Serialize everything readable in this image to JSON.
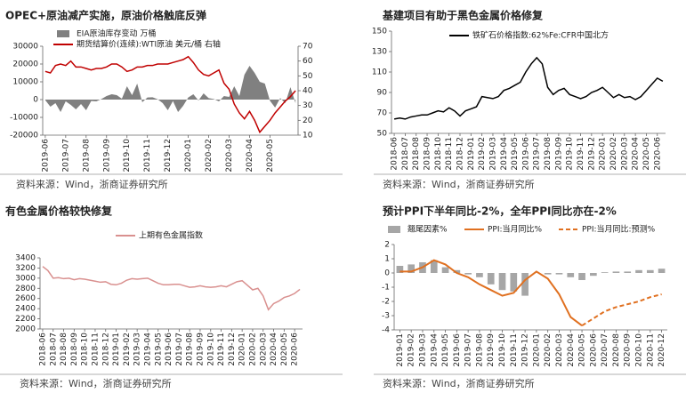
{
  "chart_data": [
    {
      "type": "line",
      "title": "OPEC+原油减产实施，原油价格触底反弹",
      "source": "资料来源：Wind，浙商证券研究所",
      "categories": [
        "2019-06",
        null,
        null,
        null,
        "2019-07",
        null,
        null,
        null,
        "2019-08",
        null,
        null,
        null,
        "2019-09",
        null,
        null,
        null,
        "2019-10",
        null,
        null,
        null,
        "2019-11",
        null,
        null,
        null,
        "2019-12",
        null,
        null,
        null,
        "2020-01",
        null,
        null,
        null,
        "2020-02",
        null,
        null,
        null,
        "2020-03",
        null,
        null,
        null,
        "2020-04",
        null,
        null,
        null,
        "2020-05",
        null,
        null,
        null,
        null,
        null
      ],
      "series": [
        {
          "name": "EIA原油库存变动 万桶",
          "kind": "area",
          "color": "#808080",
          "values": [
            -300,
            -4000,
            -2000,
            -7000,
            -1000,
            -3000,
            -5500,
            -2500,
            -6000,
            -800,
            -1000,
            300,
            2000,
            3000,
            2500,
            500,
            7500,
            2500,
            9000,
            -1500,
            1200,
            1300,
            200,
            -2000,
            -6000,
            -800,
            -7000,
            -3500,
            1200,
            3000,
            -500,
            3500,
            800,
            300,
            -1000,
            2000,
            1500,
            7500,
            2000,
            14000,
            19000,
            15000,
            10000,
            9000,
            -700,
            -4500,
            800,
            -2000,
            7000,
            -2000
          ]
        },
        {
          "name": "期货结算价(连续):WTI原油 美元/桶 右轴",
          "kind": "line",
          "axis": "y2",
          "color": "#c00000",
          "values": [
            53,
            52,
            57,
            58,
            57,
            60,
            56,
            56,
            55,
            54,
            55,
            55,
            56,
            58,
            58,
            56,
            53,
            54,
            56,
            56,
            57,
            57,
            58,
            58,
            58,
            59,
            60,
            61,
            63,
            59,
            54,
            51,
            50,
            52,
            54,
            45,
            41,
            31,
            25,
            21,
            26,
            20,
            12,
            16,
            20,
            25,
            29,
            33,
            36,
            40
          ]
        }
      ],
      "ylim": [
        -20000,
        30000
      ],
      "yticks": [
        -20000,
        -10000,
        0,
        10000,
        20000,
        30000
      ],
      "y2lim": [
        10,
        70
      ],
      "y2ticks": [
        10,
        20,
        30,
        40,
        50,
        60,
        70
      ]
    },
    {
      "type": "line",
      "title": "基建项目有助于黑色金属价格修复",
      "source": "资料来源：Wind，浙商证券研究所",
      "categories": [
        "2018-06",
        null,
        "2018-07",
        null,
        "2018-08",
        null,
        "2018-09",
        null,
        "2018-10",
        null,
        "2018-11",
        null,
        "2018-12",
        null,
        "2019-01",
        null,
        "2019-02",
        null,
        "2019-03",
        null,
        "2019-04",
        null,
        "2019-05",
        null,
        "2019-06",
        null,
        "2019-07",
        null,
        "2019-08",
        null,
        "2019-09",
        null,
        "2019-10",
        null,
        "2019-11",
        null,
        "2019-12",
        null,
        "2020-01",
        null,
        "2020-02",
        null,
        "2020-03",
        null,
        "2020-04",
        null,
        "2020-05",
        null,
        "2020-06",
        null
      ],
      "series": [
        {
          "name": "铁矿石价格指数:62%Fe:CFR中国北方",
          "kind": "line",
          "color": "#000000",
          "values": [
            64,
            65,
            64,
            66,
            67,
            68,
            68,
            70,
            72,
            71,
            75,
            72,
            67,
            72,
            74,
            76,
            86,
            85,
            84,
            86,
            92,
            94,
            97,
            100,
            110,
            118,
            124,
            118,
            95,
            88,
            92,
            94,
            88,
            86,
            84,
            86,
            90,
            92,
            95,
            90,
            85,
            88,
            85,
            86,
            83,
            86,
            92,
            98,
            104,
            101
          ]
        }
      ],
      "ylim": [
        50,
        150
      ],
      "yticks": [
        50,
        70,
        90,
        110,
        130,
        150
      ]
    },
    {
      "type": "line",
      "title": "有色金属价格较快修复",
      "source": "资料来源：Wind，浙商证券研究所",
      "categories": [
        "2018-06",
        null,
        "2018-07",
        null,
        "2018-08",
        null,
        "2018-09",
        null,
        "2018-10",
        null,
        "2018-11",
        null,
        "2018-12",
        null,
        "2019-01",
        null,
        "2019-02",
        null,
        "2019-03",
        null,
        "2019-04",
        null,
        "2019-05",
        null,
        "2019-06",
        null,
        "2019-07",
        null,
        "2019-08",
        null,
        "2019-09",
        null,
        "2019-10",
        null,
        "2019-11",
        null,
        "2019-12",
        null,
        "2020-01",
        null,
        "2020-02",
        null,
        "2020-03",
        null,
        "2020-04",
        null,
        "2020-05",
        null,
        "2020-06",
        null
      ],
      "series": [
        {
          "name": "上期有色金属指数",
          "kind": "line",
          "color": "#d9908f",
          "values": [
            3230,
            3150,
            3000,
            3010,
            2990,
            3000,
            2970,
            2990,
            2980,
            2960,
            2940,
            2920,
            2930,
            2880,
            2870,
            2900,
            2960,
            2990,
            2980,
            2990,
            3000,
            2950,
            2900,
            2870,
            2870,
            2880,
            2880,
            2850,
            2820,
            2830,
            2850,
            2830,
            2820,
            2830,
            2850,
            2830,
            2880,
            2930,
            2950,
            2860,
            2770,
            2800,
            2650,
            2380,
            2500,
            2550,
            2620,
            2650,
            2700,
            2780
          ]
        }
      ],
      "ylim": [
        2000,
        3400
      ],
      "yticks": [
        2000,
        2200,
        2400,
        2600,
        2800,
        3000,
        3200,
        3400
      ]
    },
    {
      "type": "line",
      "title": "预计PPI下半年同比-2%，全年PPI同比亦在-2%",
      "source": "资料来源：Wind，浙商证券研究所",
      "categories": [
        "2019-01",
        "2019-02",
        "2019-03",
        "2019-04",
        "2019-05",
        "2019-06",
        "2019-07",
        "2019-08",
        "2019-09",
        "2019-10",
        "2019-11",
        "2019-12",
        "2020-01",
        "2020-02",
        "2020-03",
        "2020-04",
        "2020-05",
        "2020-06",
        "2020-07",
        "2020-08",
        "2020-09",
        "2020-10",
        "2020-11",
        "2020-12"
      ],
      "series": [
        {
          "name": "翘尾因素%",
          "kind": "bar",
          "color": "#a6a6a6",
          "values": [
            0.5,
            0.6,
            0.75,
            0.9,
            0.4,
            0.2,
            -0.1,
            -0.3,
            -0.8,
            -1.2,
            -1.3,
            -1.6,
            0,
            -0.1,
            -0.1,
            -0.3,
            -0.5,
            -0.2,
            0.05,
            0.1,
            0.1,
            0.2,
            0.2,
            0.3
          ]
        },
        {
          "name": "PPI:当月同比%",
          "kind": "line",
          "color": "#e07020",
          "values": [
            0.1,
            0.1,
            0.4,
            0.9,
            0.6,
            0,
            -0.3,
            -0.8,
            -1.2,
            -1.6,
            -1.4,
            -0.5,
            0.1,
            -0.4,
            -1.5,
            -3.1,
            -3.7,
            null,
            null,
            null,
            null,
            null,
            null,
            null
          ]
        },
        {
          "name": "PPI:当月同比:预测%",
          "kind": "line",
          "dash": true,
          "color": "#e07020",
          "values": [
            null,
            null,
            null,
            null,
            null,
            null,
            null,
            null,
            null,
            null,
            null,
            null,
            null,
            null,
            null,
            null,
            -3.7,
            -3.2,
            -2.7,
            -2.4,
            -2.2,
            -2.0,
            -1.7,
            -1.5
          ]
        }
      ],
      "ylim": [
        -4,
        2
      ],
      "yticks": [
        -4,
        -3,
        -2,
        -1,
        0,
        1,
        2
      ]
    }
  ]
}
